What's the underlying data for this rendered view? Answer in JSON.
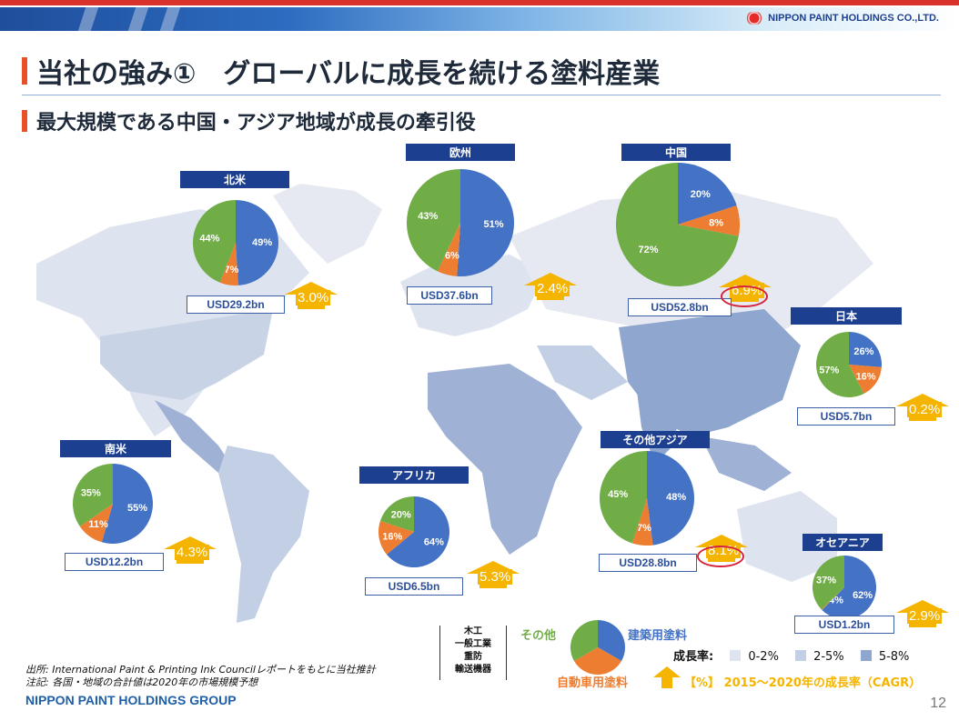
{
  "header": {
    "company_logo": "NIPPON PAINT HOLDINGS CO.,LTD.",
    "title": "当社の強み①　グローバルに成長を続ける塗料産業",
    "subtitle": "最大規模である中国・アジア地域が成長の牽引役"
  },
  "colors": {
    "architectural": "#4472c4",
    "automotive": "#ed7d31",
    "other": "#70ad47",
    "accent": "#f4b400",
    "title_bar": "#1d3f8f"
  },
  "regions": [
    {
      "name": "北米",
      "market": "USD29.2bn",
      "cagr": "3.0%",
      "shares": [
        49,
        7,
        44
      ],
      "labels": [
        "49%",
        "7%",
        "44%"
      ],
      "highlight": false
    },
    {
      "name": "欧州",
      "market": "USD37.6bn",
      "cagr": "2.4%",
      "shares": [
        51,
        6,
        43
      ],
      "labels": [
        "51%",
        "6%",
        "43%"
      ],
      "highlight": false
    },
    {
      "name": "中国",
      "market": "USD52.8bn",
      "cagr": "6.9%",
      "shares": [
        20,
        8,
        72
      ],
      "labels": [
        "20%",
        "8%",
        "72%"
      ],
      "highlight": true
    },
    {
      "name": "日本",
      "market": "USD5.7bn",
      "cagr": "0.2%",
      "shares": [
        26,
        16,
        57
      ],
      "labels": [
        "26%",
        "16%",
        "57%"
      ],
      "highlight": false
    },
    {
      "name": "その他アジア",
      "market": "USD28.8bn",
      "cagr": "8.1%",
      "shares": [
        48,
        7,
        45
      ],
      "labels": [
        "48%",
        "7%",
        "45%"
      ],
      "highlight": true
    },
    {
      "name": "南米",
      "market": "USD12.2bn",
      "cagr": "4.3%",
      "shares": [
        55,
        11,
        35
      ],
      "labels": [
        "55%",
        "11%",
        "35%"
      ],
      "highlight": false
    },
    {
      "name": "アフリカ",
      "market": "USD6.5bn",
      "cagr": "5.3%",
      "shares": [
        64,
        16,
        20
      ],
      "labels": [
        "64%",
        "16%",
        "20%"
      ],
      "highlight": false
    },
    {
      "name": "オセアニア",
      "market": "USD1.2bn",
      "cagr": "2.9%",
      "shares": [
        62,
        0.4,
        37
      ],
      "labels": [
        "62%",
        "0.4%",
        "37%"
      ],
      "highlight": false
    }
  ],
  "legend": {
    "other_items": [
      "木工",
      "一般工業",
      "重防",
      "輸送機器"
    ],
    "other": "その他",
    "architectural": "建築用塗料",
    "automotive": "自動車用塗料",
    "growth_label": "成長率:",
    "ranges": [
      "0-2%",
      "2-5%",
      "5-8%"
    ],
    "range_colors": [
      "#dde3ef",
      "#c2cfe4",
      "#8fa6cf"
    ],
    "cagr_note": "【%】 2015～2020年の成長率（CAGR）"
  },
  "footer": {
    "source": "出所:  International Paint & Printing Ink Councilレポートをもとに当社推計",
    "note": "注記: 各国・地域の合計値は2020年の市場規模予想",
    "group": "NIPPON PAINT HOLDINGS GROUP",
    "page": "12"
  }
}
